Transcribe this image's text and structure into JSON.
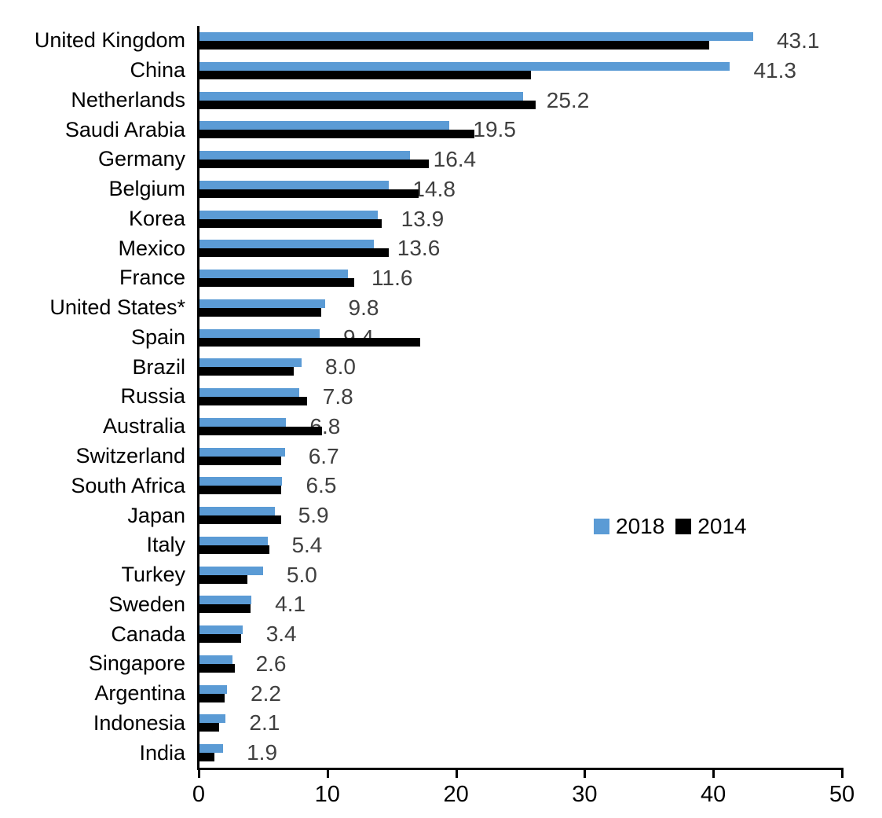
{
  "chart_data": {
    "type": "bar",
    "orientation": "horizontal",
    "title": "",
    "xlabel": "",
    "ylabel": "",
    "xlim": [
      0,
      50
    ],
    "x_ticks": [
      "0",
      "10",
      "20",
      "30",
      "40",
      "50"
    ],
    "grid": false,
    "legend_position": "middle-right",
    "categories": [
      "United Kingdom",
      "China",
      "Netherlands",
      "Saudi Arabia",
      "Germany",
      "Belgium",
      "Korea",
      "Mexico",
      "France",
      "United States*",
      "Spain",
      "Brazil",
      "Russia",
      "Australia",
      "Switzerland",
      "South Africa",
      "Japan",
      "Italy",
      "Turkey",
      "Sweden",
      "Canada",
      "Singapore",
      "Argentina",
      "Indonesia",
      "India"
    ],
    "series": [
      {
        "name": "2018",
        "color": "#5B9BD5",
        "values": [
          43.1,
          41.3,
          25.2,
          19.5,
          16.4,
          14.8,
          13.9,
          13.6,
          11.6,
          9.8,
          9.4,
          8.0,
          7.8,
          6.8,
          6.7,
          6.5,
          5.9,
          5.4,
          5.0,
          4.1,
          3.4,
          2.6,
          2.2,
          2.1,
          1.9
        ],
        "data_labels": [
          "43.1",
          "41.3",
          "25.2",
          "19.5",
          "16.4",
          "14.8",
          "13.9",
          "13.6",
          "11.6",
          "9.8",
          "9.4",
          "8.0",
          "7.8",
          "6.8",
          "6.7",
          "6.5",
          "5.9",
          "5.4",
          "5.0",
          "4.1",
          "3.4",
          "2.6",
          "2.2",
          "2.1",
          "1.9"
        ]
      },
      {
        "name": "2014",
        "color": "#000000",
        "values": [
          39.7,
          25.8,
          26.2,
          21.4,
          17.9,
          17.1,
          14.2,
          14.8,
          12.1,
          9.5,
          17.2,
          7.4,
          8.4,
          9.6,
          6.4,
          6.4,
          6.4,
          5.5,
          3.8,
          4.0,
          3.3,
          2.8,
          2.0,
          1.6,
          1.2
        ],
        "data_labels": []
      }
    ]
  },
  "colors": {
    "bar_2018": "#5B9BD5",
    "bar_2014": "#000000",
    "value_label": "#404040",
    "axis": "#000000",
    "background": "#FFFFFF"
  },
  "legend": {
    "items": [
      {
        "label": "2018",
        "color": "#5B9BD5"
      },
      {
        "label": "2014",
        "color": "#000000"
      }
    ]
  }
}
